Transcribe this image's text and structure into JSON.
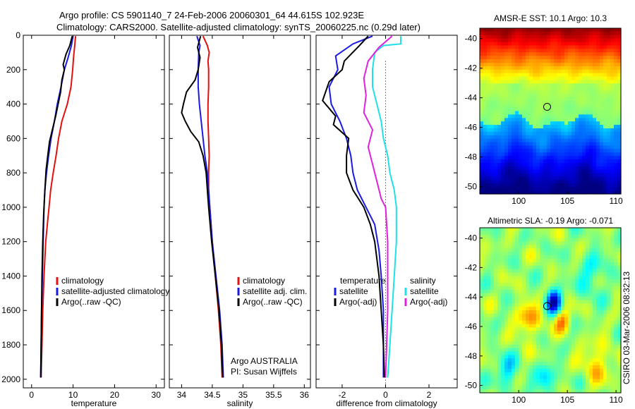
{
  "header": {
    "line1": "Argo profile: CS 5901140_7 24-Feb-2006 20060301_64 44.615S 102.923E",
    "line2": "Climatology: CARS2000. Satellite-adjusted climatology: synTS_20060225.nc (0.29d later)"
  },
  "colors": {
    "climatology": "#e41010",
    "satellite": "#1a1ae6",
    "argo": "#000000",
    "sal_satellite": "#20e0e8",
    "sal_argo": "#e020e0"
  },
  "chart_data": [
    {
      "type": "line",
      "id": "temperature",
      "xlabel": "temperature",
      "xlim": [
        -2,
        32
      ],
      "ylim": [
        2050,
        0
      ],
      "xticks": [
        0,
        10,
        20,
        30
      ],
      "yticks": [
        0,
        200,
        400,
        600,
        800,
        1000,
        1200,
        1400,
        1600,
        1800,
        2000
      ],
      "legend": [
        "climatology",
        "satellite-adjusted climatology",
        "Argo(..raw -QC)"
      ],
      "series": [
        {
          "name": "climatology",
          "color": "#e41010",
          "points": [
            [
              10.6,
              5
            ],
            [
              10.4,
              60
            ],
            [
              10.1,
              130
            ],
            [
              9.9,
              200
            ],
            [
              9.5,
              300
            ],
            [
              8.6,
              400
            ],
            [
              7.3,
              500
            ],
            [
              6.5,
              600
            ],
            [
              5.9,
              700
            ],
            [
              5.2,
              800
            ],
            [
              4.6,
              900
            ],
            [
              4.2,
              1000
            ],
            [
              3.8,
              1100
            ],
            [
              3.4,
              1200
            ],
            [
              3.0,
              1400
            ],
            [
              2.7,
              1600
            ],
            [
              2.5,
              1800
            ],
            [
              2.3,
              1990
            ]
          ]
        },
        {
          "name": "satellite-adjusted climatology",
          "color": "#1a1ae6",
          "points": [
            [
              10.0,
              5
            ],
            [
              9.6,
              60
            ],
            [
              8.8,
              130
            ],
            [
              7.9,
              200
            ],
            [
              7.1,
              300
            ],
            [
              6.2,
              400
            ],
            [
              5.5,
              500
            ],
            [
              4.7,
              600
            ],
            [
              4.1,
              700
            ],
            [
              3.6,
              800
            ],
            [
              3.2,
              900
            ],
            [
              3.0,
              1000
            ],
            [
              2.8,
              1200
            ],
            [
              2.6,
              1400
            ],
            [
              2.4,
              1600
            ],
            [
              2.3,
              1800
            ],
            [
              2.2,
              1990
            ]
          ]
        },
        {
          "name": "Argo(..raw -QC)",
          "color": "#000000",
          "points": [
            [
              9.8,
              5
            ],
            [
              9.2,
              60
            ],
            [
              8.3,
              110
            ],
            [
              7.6,
              170
            ],
            [
              7.9,
              200
            ],
            [
              7.3,
              260
            ],
            [
              7.0,
              330
            ],
            [
              6.4,
              400
            ],
            [
              5.8,
              470
            ],
            [
              5.0,
              550
            ],
            [
              4.3,
              620
            ],
            [
              3.9,
              700
            ],
            [
              3.5,
              780
            ],
            [
              3.3,
              860
            ],
            [
              3.1,
              950
            ],
            [
              2.9,
              1050
            ],
            [
              2.7,
              1200
            ],
            [
              2.5,
              1400
            ],
            [
              2.4,
              1600
            ],
            [
              2.3,
              1800
            ],
            [
              2.2,
              1990
            ]
          ]
        }
      ]
    },
    {
      "type": "line",
      "id": "salinity",
      "xlabel": "salinity",
      "xlim": [
        33.8,
        36.1
      ],
      "ylim": [
        2050,
        0
      ],
      "xticks": [
        34,
        34.5,
        35,
        35.5,
        36
      ],
      "legend": [
        "climatology",
        "satellite adj. clim.",
        "Argo(..raw -QC)"
      ],
      "series": [
        {
          "name": "climatology",
          "color": "#e41010",
          "points": [
            [
              34.35,
              5
            ],
            [
              34.42,
              60
            ],
            [
              34.45,
              100
            ],
            [
              34.43,
              150
            ],
            [
              34.44,
              200
            ],
            [
              34.44,
              300
            ],
            [
              34.43,
              400
            ],
            [
              34.43,
              500
            ],
            [
              34.44,
              600
            ],
            [
              34.45,
              700
            ],
            [
              34.44,
              800
            ],
            [
              34.44,
              900
            ],
            [
              34.46,
              1000
            ],
            [
              34.5,
              1200
            ],
            [
              34.55,
              1400
            ],
            [
              34.6,
              1600
            ],
            [
              34.64,
              1800
            ],
            [
              34.66,
              1990
            ]
          ]
        },
        {
          "name": "satellite adj. clim.",
          "color": "#1a1ae6",
          "points": [
            [
              34.25,
              5
            ],
            [
              34.3,
              60
            ],
            [
              34.28,
              100
            ],
            [
              34.27,
              200
            ],
            [
              34.27,
              300
            ],
            [
              34.29,
              400
            ],
            [
              34.32,
              500
            ],
            [
              34.35,
              600
            ],
            [
              34.38,
              700
            ],
            [
              34.42,
              800
            ],
            [
              34.44,
              900
            ],
            [
              34.46,
              1000
            ],
            [
              34.5,
              1200
            ],
            [
              34.56,
              1400
            ],
            [
              34.62,
              1600
            ],
            [
              34.66,
              1800
            ],
            [
              34.68,
              1990
            ]
          ]
        },
        {
          "name": "Argo(..raw -QC)",
          "color": "#000000",
          "points": [
            [
              34.31,
              5
            ],
            [
              34.26,
              70
            ],
            [
              34.3,
              130
            ],
            [
              34.27,
              200
            ],
            [
              34.22,
              260
            ],
            [
              34.08,
              330
            ],
            [
              34.03,
              400
            ],
            [
              34.0,
              450
            ],
            [
              34.06,
              500
            ],
            [
              34.15,
              560
            ],
            [
              34.28,
              620
            ],
            [
              34.35,
              700
            ],
            [
              34.4,
              800
            ],
            [
              34.42,
              900
            ],
            [
              34.44,
              1000
            ],
            [
              34.49,
              1200
            ],
            [
              34.55,
              1400
            ],
            [
              34.61,
              1600
            ],
            [
              34.65,
              1800
            ],
            [
              34.67,
              1990
            ]
          ]
        }
      ],
      "annotation": [
        "Argo AUSTRALIA",
        "PI: Susan Wijffels"
      ]
    },
    {
      "type": "line",
      "id": "difference",
      "xlabel": "difference from climatology",
      "xlim": [
        -3.2,
        3.3
      ],
      "ylim": [
        2050,
        0
      ],
      "xticks": [
        -2,
        0,
        2
      ],
      "legend_temperature": {
        "title": "temperature",
        "entries": [
          "satellite",
          "Argo(-adj)"
        ]
      },
      "legend_salinity": {
        "title": "salinity",
        "entries": [
          "satellite",
          "Argo(-adj)"
        ]
      },
      "series": [
        {
          "name": "temperature satellite",
          "color": "#1a1ae6",
          "points": [
            [
              -0.6,
              5
            ],
            [
              -1.5,
              50
            ],
            [
              -2.3,
              120
            ],
            [
              -2.2,
              200
            ],
            [
              -2.6,
              300
            ],
            [
              -2.5,
              400
            ],
            [
              -2.1,
              500
            ],
            [
              -1.8,
              600
            ],
            [
              -1.6,
              700
            ],
            [
              -1.5,
              800
            ],
            [
              -1.3,
              900
            ],
            [
              -0.9,
              1000
            ],
            [
              -0.5,
              1100
            ],
            [
              -0.3,
              1250
            ],
            [
              -0.2,
              1400
            ],
            [
              -0.1,
              1600
            ],
            [
              -0.1,
              1800
            ],
            [
              -0.1,
              1990
            ]
          ]
        },
        {
          "name": "temperature Argo(-adj)",
          "color": "#000000",
          "points": [
            [
              -0.8,
              5
            ],
            [
              -1.2,
              60
            ],
            [
              -1.9,
              150
            ],
            [
              -2.0,
              200
            ],
            [
              -2.6,
              270
            ],
            [
              -2.9,
              380
            ],
            [
              -2.3,
              470
            ],
            [
              -2.4,
              520
            ],
            [
              -1.7,
              600
            ],
            [
              -1.8,
              700
            ],
            [
              -1.8,
              800
            ],
            [
              -1.5,
              900
            ],
            [
              -1.0,
              1000
            ],
            [
              -0.7,
              1100
            ],
            [
              -0.5,
              1200
            ],
            [
              -0.3,
              1400
            ],
            [
              -0.2,
              1600
            ],
            [
              -0.1,
              1800
            ],
            [
              -0.05,
              1990
            ]
          ]
        },
        {
          "name": "salinity satellite",
          "color": "#20e0e8",
          "points": [
            [
              0.7,
              5
            ],
            [
              0.7,
              50
            ],
            [
              -0.1,
              60
            ],
            [
              -0.5,
              100
            ],
            [
              -0.6,
              200
            ],
            [
              -0.6,
              300
            ],
            [
              -0.4,
              400
            ],
            [
              -0.2,
              500
            ],
            [
              -0.1,
              600
            ],
            [
              0.1,
              700
            ],
            [
              0.2,
              800
            ],
            [
              0.4,
              900
            ],
            [
              0.5,
              1000
            ],
            [
              0.5,
              1200
            ],
            [
              0.4,
              1400
            ],
            [
              0.3,
              1600
            ],
            [
              0.2,
              1800
            ],
            [
              0.1,
              1990
            ]
          ]
        },
        {
          "name": "salinity Argo(-adj)",
          "color": "#e020e0",
          "points": [
            [
              0.3,
              5
            ],
            [
              -0.3,
              70
            ],
            [
              -0.8,
              150
            ],
            [
              -1.0,
              250
            ],
            [
              -0.9,
              350
            ],
            [
              -1.0,
              450
            ],
            [
              -0.6,
              550
            ],
            [
              -0.8,
              650
            ],
            [
              -0.6,
              750
            ],
            [
              -0.4,
              850
            ],
            [
              -0.2,
              950
            ],
            [
              0.0,
              1000
            ],
            [
              0.1,
              1200
            ],
            [
              0.1,
              1400
            ],
            [
              0.1,
              1600
            ],
            [
              0.05,
              1800
            ],
            [
              0.0,
              1990
            ]
          ]
        }
      ]
    },
    {
      "type": "heatmap",
      "id": "sst_map",
      "title": "AMSR-E SST: 10.1 Argo: 10.3",
      "xlim": [
        96,
        110.5
      ],
      "ylim": [
        -50.5,
        -39.3
      ],
      "xticks": [
        100,
        105,
        110
      ],
      "yticks": [
        -40,
        -42,
        -44,
        -46,
        -48,
        -50
      ],
      "marker": {
        "lon": 102.923,
        "lat": -44.615
      }
    },
    {
      "type": "heatmap",
      "id": "sla_map",
      "title": "Altimetric SLA: -0.19 Argo: -0.071",
      "xlim": [
        96,
        110.5
      ],
      "ylim": [
        -50.5,
        -39.3
      ],
      "xticks": [
        100,
        105,
        110
      ],
      "yticks": [
        -40,
        -42,
        -44,
        -46,
        -48,
        -50
      ],
      "marker": {
        "lon": 102.923,
        "lat": -44.615
      }
    }
  ],
  "footer_stamp": "CSIRO 03-Mar-2006 08:32:13"
}
